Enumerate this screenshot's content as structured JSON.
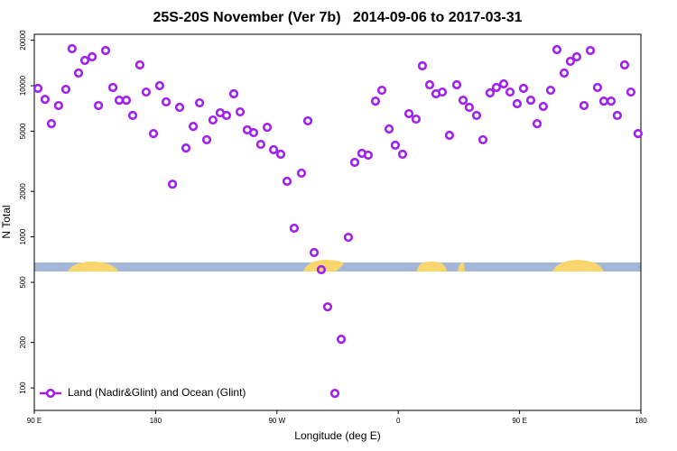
{
  "chart_data": {
    "type": "scatter",
    "title": "25S-20S November (Ver 7b)   2014-09-06 to 2017-03-31",
    "x_label": "Longitude (deg E)",
    "y_label": "N Total",
    "log_y": true,
    "legend": "bottom-left",
    "xlim": [
      90,
      540
    ],
    "xticks": [
      {
        "value": 90,
        "label": "90 E"
      },
      {
        "value": 180,
        "label": "180"
      },
      {
        "value": 270,
        "label": "90 W"
      },
      {
        "value": 360,
        "label": "0"
      },
      {
        "value": 450,
        "label": "90 E"
      },
      {
        "value": 540,
        "label": "180"
      }
    ],
    "ylim": [
      71,
      21900
    ],
    "yticks": [
      100,
      200,
      500,
      1000,
      2000,
      5000,
      10000,
      20000
    ],
    "x": [
      92.7,
      98,
      102.7,
      108,
      113.4,
      118,
      122.8,
      127.5,
      132.9,
      137.6,
      142.9,
      148.3,
      153,
      158.3,
      163,
      168.3,
      173,
      178.4,
      183,
      187.8,
      192.5,
      197.8,
      202.5,
      207.9,
      212.6,
      217.9,
      222.5,
      227.9,
      232.6,
      238,
      242.7,
      248,
      252.7,
      258,
      262.8,
      267.5,
      272.8,
      277.5,
      282.8,
      288.2,
      292.9,
      297.6,
      302.9,
      307.6,
      313,
      317.7,
      323,
      327.7,
      333,
      337.7,
      343.1,
      347.8,
      353.2,
      357.8,
      363.2,
      367.9,
      373.2,
      377.9,
      383.3,
      388,
      392.7,
      398,
      403.4,
      408.1,
      412.7,
      418.1,
      422.8,
      428.1,
      432.8,
      438.2,
      442.9,
      448.2,
      452.9,
      458.3,
      463,
      467.6,
      473,
      477.7,
      483.1,
      487.7,
      492.4,
      497.8,
      502.5,
      507.8,
      512.5,
      517.9,
      522.5,
      527.9,
      532.6,
      537.9
    ],
    "series": [
      {
        "name": "Land (Nadir&Glint) and Ocean (Glint)",
        "color": "#a020f0",
        "values": [
          9600,
          8130,
          5610,
          7390,
          9460,
          17580,
          12130,
          14700,
          15530,
          7390,
          17090,
          9730,
          8020,
          8020,
          6360,
          13730,
          9080,
          4820,
          10000,
          7810,
          2230,
          7190,
          3870,
          5380,
          7700,
          4390,
          5930,
          6620,
          6360,
          8840,
          6710,
          5100,
          4890,
          4090,
          5310,
          3770,
          3520,
          2330,
          1140,
          2640,
          5850,
          787,
          606,
          344,
          92,
          210,
          993,
          3110,
          3570,
          3470,
          7910,
          9330,
          5170,
          4040,
          3520,
          6530,
          6010,
          13540,
          10140,
          8840,
          9080,
          4700,
          10140,
          8020,
          7190,
          6360,
          4390,
          8960,
          9730,
          10280,
          9080,
          7600,
          9600,
          8020,
          5610,
          7290,
          9330,
          17330,
          12130,
          14500,
          15530,
          7390,
          17090,
          9730,
          7910,
          7910,
          6360,
          13730,
          9080,
          4820
        ]
      }
    ]
  }
}
